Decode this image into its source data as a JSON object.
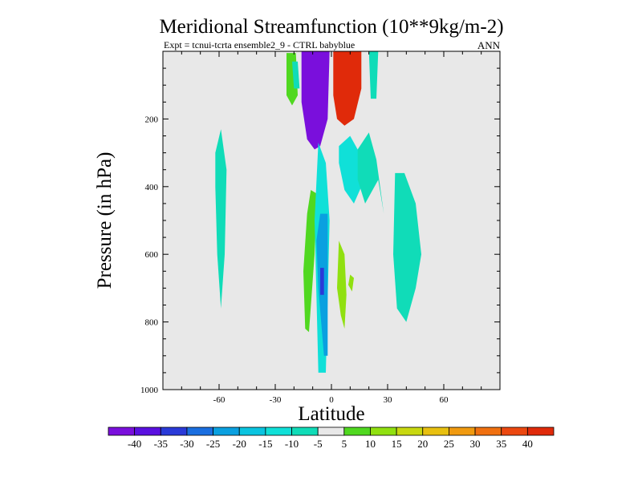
{
  "chart_data": {
    "type": "heatmap",
    "title": "Meridional Streamfunction (10**9kg/m-2)",
    "subtitle_left": "Expt = tcnui-tcrta    ensemble2_9 - CTRL babyblue",
    "subtitle_right": "ANN",
    "xlabel": "Latitude",
    "ylabel": "Pressure (in hPa)",
    "xlim": [
      -90,
      90
    ],
    "ylim": [
      1000,
      0
    ],
    "xticks": [
      -60,
      -30,
      0,
      30,
      60
    ],
    "xtick_labels": [
      "-60",
      "-30",
      "0",
      "30",
      "60"
    ],
    "yticks": [
      200,
      400,
      600,
      800,
      1000
    ],
    "ytick_labels": [
      "200",
      "400",
      "600",
      "800",
      "1000"
    ],
    "background_color": "#e8e8e8",
    "colorbar": {
      "labels": [
        "-40",
        "-35",
        "-30",
        "-25",
        "-20",
        "-15",
        "-10",
        "-5",
        "5",
        "10",
        "15",
        "20",
        "25",
        "30",
        "35",
        "40"
      ],
      "colors": [
        "#7a0fdc",
        "#5a10e0",
        "#2a3ad8",
        "#1a6ee0",
        "#0aa0e0",
        "#0ac4e0",
        "#10e0d8",
        "#10dcb8",
        "#e8e8e8",
        "#50d820",
        "#90e010",
        "#c8d810",
        "#e8c010",
        "#f09a10",
        "#f07010",
        "#ec4810",
        "#e02a0a"
      ]
    },
    "regions": [
      {
        "level": "-40",
        "color": "#7a0fdc",
        "lat": [
          -16,
          -1,
          -2,
          -6,
          -9,
          -13,
          -16
        ],
        "p": [
          0,
          0,
          200,
          280,
          290,
          260,
          150
        ]
      },
      {
        "level": "40",
        "color": "#e02a0a",
        "lat": [
          1,
          16,
          16,
          12,
          7,
          3,
          1
        ],
        "p": [
          0,
          0,
          110,
          200,
          220,
          200,
          130
        ]
      },
      {
        "level": "10",
        "color": "#50d820",
        "lat": [
          -24,
          -19,
          -18,
          -21,
          -24
        ],
        "p": [
          5,
          5,
          130,
          160,
          130
        ]
      },
      {
        "level": "-5",
        "color": "#10dcb8",
        "lat": [
          -21,
          -18,
          -17,
          -20
        ],
        "p": [
          30,
          30,
          110,
          110
        ]
      },
      {
        "level": "-5",
        "color": "#10dcb8",
        "lat": [
          20,
          25,
          24,
          21
        ],
        "p": [
          0,
          0,
          140,
          140
        ]
      },
      {
        "level": "-5",
        "color": "#10dcb8",
        "lat": [
          -62,
          -59,
          -56,
          -57,
          -59,
          -61,
          -62
        ],
        "p": [
          300,
          230,
          350,
          600,
          760,
          600,
          400
        ]
      },
      {
        "level": "10",
        "color": "#50d820",
        "lat": [
          -11,
          -8,
          -9,
          -12,
          -14,
          -15,
          -13
        ],
        "p": [
          410,
          420,
          600,
          830,
          820,
          650,
          480
        ]
      },
      {
        "level": "-10",
        "color": "#10e0d8",
        "lat": [
          -7,
          -3,
          -1,
          -3,
          -7,
          -9
        ],
        "p": [
          270,
          330,
          500,
          950,
          950,
          500
        ]
      },
      {
        "level": "-20",
        "color": "#0aa0e0",
        "lat": [
          -6,
          -2,
          -2,
          -4,
          -7,
          -8
        ],
        "p": [
          480,
          480,
          900,
          900,
          700,
          560
        ]
      },
      {
        "level": "-35",
        "color": "#2a3ad8",
        "lat": [
          -6,
          -4,
          -4,
          -6
        ],
        "p": [
          640,
          640,
          720,
          720
        ]
      },
      {
        "level": "-10",
        "color": "#10e0d8",
        "lat": [
          4,
          10,
          15,
          16,
          12,
          7,
          4
        ],
        "p": [
          280,
          250,
          300,
          400,
          450,
          410,
          330
        ]
      },
      {
        "level": "-5",
        "color": "#10dcb8",
        "lat": [
          14,
          20,
          24,
          28,
          25,
          18,
          14
        ],
        "p": [
          290,
          240,
          320,
          480,
          380,
          450,
          380
        ]
      },
      {
        "level": "15",
        "color": "#90e010",
        "lat": [
          4,
          7,
          8,
          7,
          5,
          3
        ],
        "p": [
          560,
          600,
          720,
          820,
          780,
          700
        ]
      },
      {
        "level": "15",
        "color": "#90e010",
        "lat": [
          10,
          12,
          11,
          9
        ],
        "p": [
          660,
          670,
          710,
          690
        ]
      },
      {
        "level": "-5",
        "color": "#10dcb8",
        "lat": [
          34,
          39,
          45,
          48,
          45,
          40,
          35,
          33
        ],
        "p": [
          360,
          360,
          450,
          600,
          700,
          800,
          760,
          600
        ]
      }
    ]
  }
}
